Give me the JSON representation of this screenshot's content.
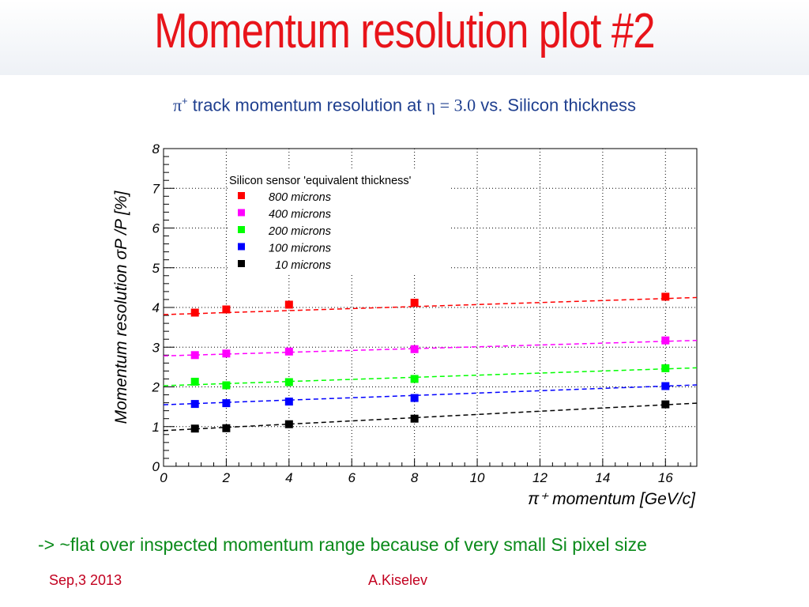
{
  "slide": {
    "title": "Momentum resolution plot #2",
    "subtitle_pi": "π",
    "subtitle_pi_sup": "+",
    "subtitle_a": " track momentum resolution at ",
    "subtitle_eta": "η = 3.0",
    "subtitle_b": " vs. Silicon thickness",
    "conclusion": "-> ~flat over inspected momentum range because of very small Si pixel size",
    "footer_date": "Sep,3 2013",
    "footer_author": "A.Kiselev"
  },
  "chart_data": {
    "type": "scatter",
    "xlabel": "π⁺ momentum [GeV/c]",
    "ylabel": "Momentum resolution   σP /P  [%]",
    "xlim": [
      0,
      17
    ],
    "ylim": [
      0,
      8
    ],
    "xticks": [
      0,
      2,
      4,
      6,
      8,
      10,
      12,
      14,
      16
    ],
    "yticks": [
      0,
      1,
      2,
      3,
      4,
      5,
      6,
      7,
      8
    ],
    "grid": true,
    "legend_title": "Silicon sensor 'equivalent thickness'",
    "legend_position": "top-left inside",
    "x": [
      1,
      2,
      4,
      8,
      16
    ],
    "series": [
      {
        "name": "800 microns",
        "color": "#ff0000",
        "values": [
          3.87,
          3.95,
          4.07,
          4.12,
          4.27
        ],
        "fit": [
          3.82,
          4.25
        ]
      },
      {
        "name": "400 microns",
        "color": "#ff00ff",
        "values": [
          2.8,
          2.84,
          2.89,
          2.95,
          3.17
        ],
        "fit": [
          2.78,
          3.17
        ]
      },
      {
        "name": "200 microns",
        "color": "#00ff00",
        "values": [
          2.13,
          2.04,
          2.12,
          2.2,
          2.47
        ],
        "fit": [
          2.03,
          2.48
        ]
      },
      {
        "name": "100 microns",
        "color": "#0000ff",
        "values": [
          1.57,
          1.59,
          1.63,
          1.72,
          2.02
        ],
        "fit": [
          1.55,
          2.05
        ]
      },
      {
        "name": "10 microns",
        "color": "#000000",
        "values": [
          0.95,
          0.96,
          1.06,
          1.2,
          1.56
        ],
        "fit": [
          0.9,
          1.59
        ]
      }
    ]
  }
}
